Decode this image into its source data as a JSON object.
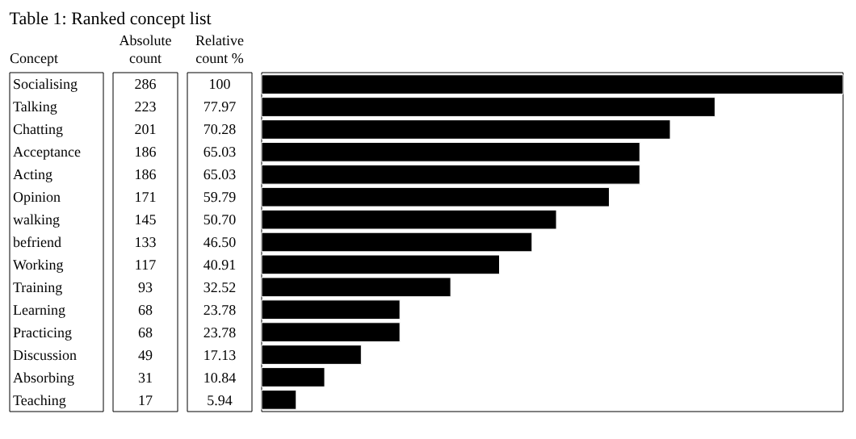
{
  "chart_data": {
    "type": "bar",
    "orientation": "horizontal",
    "title": "Table 1: Ranked concept list",
    "ylabel": "Concept",
    "xlabel": "Absolute count",
    "data_labels": true,
    "categories": [
      "Socialising",
      "Talking",
      "Chatting",
      "Acceptance",
      "Acting",
      "Opinion",
      "walking",
      "befriend",
      "Working",
      "Training",
      "Learning",
      "Practicing",
      "Discussion",
      "Absorbing",
      "Teaching"
    ],
    "values": [
      286,
      223,
      201,
      186,
      186,
      171,
      145,
      133,
      117,
      93,
      68,
      68,
      49,
      31,
      17
    ],
    "color": "#000000",
    "annotations": [
      "Relative count %",
      "100",
      "77.97",
      "70.28",
      "65.03",
      "65.03",
      "59.79",
      "50.70",
      "46.50",
      "40.91",
      "32.52",
      "23.78",
      "23.78",
      "17.13",
      "10.84",
      "5.94"
    ]
  }
}
